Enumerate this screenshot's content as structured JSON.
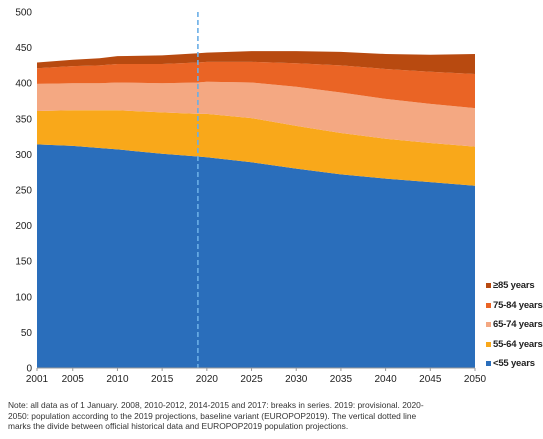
{
  "chart_data": {
    "type": "area",
    "stacked": true,
    "title": "",
    "xlabel": "",
    "ylabel": "",
    "ylim": [
      0,
      500
    ],
    "yticks": [
      0,
      50,
      100,
      150,
      200,
      250,
      300,
      350,
      400,
      450,
      500
    ],
    "xlim": [
      2001,
      2050
    ],
    "xticks": [
      2001,
      2005,
      2010,
      2015,
      2020,
      2025,
      2030,
      2035,
      2040,
      2045,
      2050
    ],
    "vertical_line": 2019,
    "grid": false,
    "legend_position": "right-bottom",
    "x": [
      2001,
      2005,
      2008,
      2010,
      2015,
      2019,
      2020,
      2025,
      2030,
      2035,
      2040,
      2045,
      2050
    ],
    "series": [
      {
        "name": "<55 years",
        "color": "#2a6ebb",
        "values": [
          314,
          312,
          309,
          307,
          301,
          297,
          296,
          289,
          280,
          272,
          266,
          261,
          256
        ]
      },
      {
        "name": "55-64 years",
        "color": "#f9a81a",
        "values": [
          47,
          50,
          53,
          55,
          58,
          60,
          61,
          62,
          60,
          58,
          56,
          55,
          55
        ]
      },
      {
        "name": "65-74 years",
        "color": "#f4a882",
        "values": [
          38,
          38,
          38,
          39,
          41,
          44,
          45,
          50,
          55,
          57,
          56,
          55,
          54
        ]
      },
      {
        "name": "75-84 years",
        "color": "#ea6425",
        "values": [
          22,
          24,
          25,
          26,
          27,
          28,
          28,
          29,
          33,
          38,
          42,
          45,
          48
        ]
      },
      {
        "name": "≥85 years",
        "color": "#b84a10",
        "values": [
          8,
          9,
          10,
          11,
          12,
          13,
          13,
          15,
          17,
          19,
          21,
          24,
          28
        ]
      }
    ]
  },
  "legend": {
    "items": [
      {
        "label": "≥85 years",
        "color": "#b84a10"
      },
      {
        "label": "75-84 years",
        "color": "#ea6425"
      },
      {
        "label": "65-74 years",
        "color": "#f4a882"
      },
      {
        "label": "55-64 years",
        "color": "#f9a81a"
      },
      {
        "label": "<55 years",
        "color": "#2a6ebb"
      }
    ]
  },
  "note": {
    "line1": "Note: all data as of 1 January.  2008, 2010-2012, 2014-2015 and 2017: breaks in series. 2019: provisional. 2020-",
    "line2": "2050: population according to the 2019 projections, baseline variant (EUROPOP2019). The vertical dotted line",
    "line3": "marks the divide between official historical data and EUROPOP2019 population projections."
  }
}
